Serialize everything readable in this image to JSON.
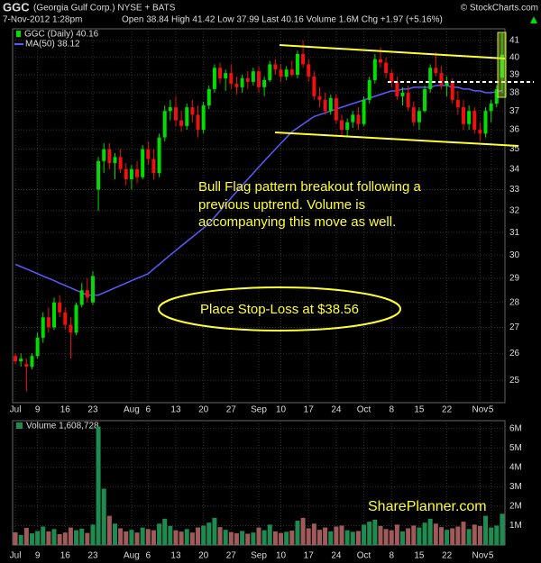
{
  "chart_data": {
    "type": "candlestick",
    "title": "GGC",
    "subtitle": "(Georgia Gulf Corp.) NYSE + BATS",
    "source": "© StockCharts.com",
    "date": "7-Nov-2012 1:28pm",
    "quote": "Open 38.84 High 41.42 Low 37.99 Last 40.16 Volume 1.6M Chg +1.97 (+5.16%)",
    "log_scale": true,
    "grid": true,
    "ylim": [
      24.2,
      41.7
    ],
    "yticks": [
      25,
      26,
      27,
      28,
      29,
      30,
      31,
      32,
      33,
      34,
      35,
      36,
      37,
      38,
      39,
      40,
      41
    ],
    "categories": [
      "Jul",
      null,
      null,
      null,
      "9",
      null,
      null,
      null,
      null,
      "16",
      null,
      null,
      null,
      null,
      "23",
      null,
      null,
      null,
      null,
      null,
      null,
      "Aug",
      null,
      null,
      "6",
      null,
      null,
      null,
      null,
      "13",
      null,
      null,
      null,
      null,
      "20",
      null,
      null,
      null,
      null,
      "27",
      null,
      null,
      null,
      null,
      "Sep",
      null,
      null,
      null,
      "10",
      null,
      null,
      null,
      null,
      "17",
      null,
      null,
      null,
      null,
      "24",
      null,
      null,
      null,
      null,
      "Oct",
      null,
      null,
      null,
      null,
      "8",
      null,
      null,
      null,
      null,
      "15",
      null,
      null,
      null,
      null,
      "22",
      null,
      null,
      null,
      null,
      null,
      "Nov",
      null,
      "5",
      null,
      null
    ],
    "price": {
      "name": "GGC (Daily) 40.16",
      "up_color": "#00dd00",
      "down_color": "#ee1111",
      "ohlc": [
        [
          25.9,
          26.0,
          25.6,
          25.7
        ],
        [
          25.7,
          26.0,
          25.5,
          25.8
        ],
        [
          25.6,
          25.8,
          24.6,
          25.5
        ],
        [
          25.5,
          26.0,
          25.4,
          25.9
        ],
        [
          25.9,
          26.8,
          25.8,
          26.6
        ],
        [
          26.6,
          27.6,
          26.4,
          27.4
        ],
        [
          27.4,
          27.8,
          26.8,
          27.0
        ],
        [
          27.0,
          28.2,
          26.9,
          28.0
        ],
        [
          28.0,
          28.3,
          27.4,
          27.6
        ],
        [
          27.6,
          27.8,
          26.9,
          27.1
        ],
        [
          27.1,
          27.4,
          25.8,
          26.8
        ],
        [
          26.8,
          28.0,
          26.7,
          27.9
        ],
        [
          27.9,
          28.8,
          27.8,
          28.5
        ],
        [
          28.5,
          29.0,
          28.0,
          28.2
        ],
        [
          28.0,
          29.3,
          27.9,
          29.1
        ],
        [
          33.0,
          34.6,
          32.0,
          34.4
        ],
        [
          34.4,
          35.3,
          33.8,
          35.0
        ],
        [
          35.0,
          35.3,
          34.0,
          34.3
        ],
        [
          34.3,
          34.8,
          33.5,
          34.6
        ],
        [
          34.6,
          35.0,
          33.8,
          34.0
        ],
        [
          34.0,
          34.3,
          33.2,
          33.5
        ],
        [
          33.5,
          34.2,
          33.0,
          34.0
        ],
        [
          34.0,
          34.4,
          33.3,
          33.6
        ],
        [
          33.6,
          35.2,
          33.5,
          35.0
        ],
        [
          35.0,
          35.4,
          34.2,
          34.5
        ],
        [
          34.5,
          35.0,
          33.5,
          33.8
        ],
        [
          33.8,
          35.8,
          33.6,
          35.6
        ],
        [
          35.6,
          37.3,
          35.4,
          37.0
        ],
        [
          37.0,
          37.6,
          36.5,
          37.2
        ],
        [
          37.2,
          37.8,
          36.2,
          36.5
        ],
        [
          36.5,
          37.0,
          35.9,
          36.2
        ],
        [
          36.2,
          37.4,
          36.0,
          37.2
        ],
        [
          37.2,
          37.6,
          36.4,
          36.8
        ],
        [
          36.8,
          37.3,
          35.6,
          36.0
        ],
        [
          36.0,
          37.5,
          35.8,
          37.3
        ],
        [
          37.3,
          38.4,
          37.1,
          38.2
        ],
        [
          38.2,
          39.6,
          38.0,
          39.4
        ],
        [
          39.4,
          39.7,
          38.5,
          38.8
        ],
        [
          38.8,
          39.3,
          38.1,
          39.1
        ],
        [
          39.1,
          39.6,
          38.2,
          38.5
        ],
        [
          38.5,
          38.9,
          37.9,
          38.3
        ],
        [
          38.3,
          39.0,
          38.0,
          38.8
        ],
        [
          38.8,
          39.2,
          38.2,
          38.6
        ],
        [
          38.6,
          39.4,
          38.4,
          39.2
        ],
        [
          39.2,
          39.5,
          38.0,
          38.3
        ],
        [
          38.3,
          38.9,
          37.8,
          38.7
        ],
        [
          38.7,
          39.8,
          38.6,
          39.6
        ],
        [
          39.6,
          39.9,
          39.0,
          39.3
        ],
        [
          39.3,
          39.6,
          38.6,
          38.9
        ],
        [
          38.9,
          39.5,
          38.7,
          39.3
        ],
        [
          39.3,
          39.8,
          38.9,
          39.0
        ],
        [
          39.0,
          40.4,
          38.8,
          40.2
        ],
        [
          40.2,
          41.0,
          39.4,
          39.6
        ],
        [
          39.6,
          39.9,
          38.6,
          38.9
        ],
        [
          38.9,
          39.2,
          37.6,
          37.8
        ],
        [
          37.8,
          38.3,
          37.2,
          37.6
        ],
        [
          37.6,
          38.0,
          36.8,
          37.0
        ],
        [
          37.0,
          37.9,
          36.8,
          37.7
        ],
        [
          37.7,
          37.9,
          36.3,
          36.5
        ],
        [
          36.5,
          36.8,
          35.7,
          36.0
        ],
        [
          36.0,
          36.6,
          35.6,
          36.4
        ],
        [
          36.4,
          37.0,
          36.1,
          36.8
        ],
        [
          36.8,
          37.2,
          36.0,
          36.3
        ],
        [
          36.3,
          37.8,
          36.2,
          37.6
        ],
        [
          37.6,
          38.9,
          37.4,
          38.7
        ],
        [
          38.7,
          40.2,
          38.5,
          39.9
        ],
        [
          39.9,
          40.6,
          39.4,
          39.7
        ],
        [
          39.7,
          40.0,
          38.8,
          39.1
        ],
        [
          39.1,
          39.3,
          38.3,
          38.6
        ],
        [
          38.6,
          38.9,
          37.6,
          37.8
        ],
        [
          37.8,
          38.3,
          37.3,
          38.0
        ],
        [
          38.0,
          38.4,
          37.0,
          37.2
        ],
        [
          37.2,
          37.5,
          36.2,
          36.4
        ],
        [
          36.4,
          37.2,
          36.0,
          37.0
        ],
        [
          37.0,
          38.4,
          36.9,
          38.2
        ],
        [
          38.2,
          39.6,
          38.0,
          39.4
        ],
        [
          39.4,
          40.3,
          38.9,
          39.1
        ],
        [
          39.1,
          39.5,
          38.2,
          38.4
        ],
        [
          38.4,
          38.9,
          37.8,
          38.6
        ],
        [
          38.6,
          38.8,
          37.4,
          37.6
        ],
        [
          37.6,
          38.1,
          36.8,
          37.2
        ],
        [
          37.2,
          37.6,
          36.0,
          36.3
        ],
        [
          36.3,
          37.3,
          36.0,
          37.0
        ],
        [
          37.0,
          37.2,
          35.8,
          36.0
        ],
        [
          36.0,
          36.4,
          35.4,
          35.8
        ],
        [
          35.8,
          37.2,
          35.6,
          37.0
        ],
        [
          37.0,
          37.6,
          36.4,
          37.4
        ],
        [
          37.4,
          38.4,
          37.2,
          38.19
        ],
        [
          38.84,
          41.42,
          37.99,
          40.16
        ]
      ]
    },
    "ma": {
      "name": "MA(50) 38.12",
      "color": "#5a5aff",
      "values": [
        29.6,
        29.5,
        29.4,
        29.3,
        29.2,
        29.1,
        29.0,
        28.9,
        28.8,
        28.7,
        28.6,
        28.5,
        28.4,
        28.3,
        28.3,
        28.3,
        28.4,
        28.5,
        28.6,
        28.7,
        28.8,
        28.9,
        29.0,
        29.1,
        29.2,
        29.4,
        29.6,
        29.8,
        30.0,
        30.2,
        30.4,
        30.6,
        30.8,
        31.0,
        31.2,
        31.4,
        31.7,
        32.0,
        32.3,
        32.6,
        32.9,
        33.2,
        33.5,
        33.8,
        34.1,
        34.4,
        34.7,
        35.0,
        35.3,
        35.6,
        35.9,
        36.1,
        36.3,
        36.5,
        36.7,
        36.8,
        36.9,
        37.0,
        37.1,
        37.2,
        37.3,
        37.4,
        37.5,
        37.6,
        37.7,
        37.8,
        37.9,
        38.0,
        38.1,
        38.1,
        38.2,
        38.2,
        38.3,
        38.3,
        38.3,
        38.3,
        38.4,
        38.4,
        38.4,
        38.3,
        38.3,
        38.2,
        38.2,
        38.1,
        38.1,
        38.0,
        38.0,
        38.05,
        38.12
      ]
    },
    "volume": {
      "name": "Volume 1,608,728",
      "up_color": "#1e8c50",
      "down_color": "#a05a5a",
      "ylim": [
        0,
        6400000
      ],
      "yticks": [
        {
          "value": 1000000,
          "label": "1M"
        },
        {
          "value": 2000000,
          "label": "2M"
        },
        {
          "value": 3000000,
          "label": "3M"
        },
        {
          "value": 4000000,
          "label": "4M"
        },
        {
          "value": 5000000,
          "label": "5M"
        },
        {
          "value": 6000000,
          "label": "6M"
        }
      ],
      "values": [
        650000,
        520000,
        880000,
        600000,
        720000,
        950000,
        700000,
        820000,
        560000,
        640000,
        900000,
        760000,
        840000,
        620000,
        1050000,
        6100000,
        2900000,
        1500000,
        1100000,
        860000,
        700000,
        780000,
        640000,
        900000,
        820000,
        760000,
        1100000,
        1350000,
        980000,
        760000,
        690000,
        820000,
        640000,
        900000,
        1000000,
        1150000,
        1400000,
        920000,
        780000,
        660000,
        600000,
        720000,
        580000,
        640000,
        900000,
        760000,
        1050000,
        700000,
        620000,
        680000,
        740000,
        1250000,
        1400000,
        860000,
        1100000,
        780000,
        900000,
        700000,
        950000,
        1000000,
        760000,
        680000,
        720000,
        1050000,
        1200000,
        1300000,
        980000,
        820000,
        760000,
        1050000,
        700000,
        860000,
        1000000,
        900000,
        1150000,
        1350000,
        1100000,
        920000,
        780000,
        860000,
        950000,
        1200000,
        820000,
        1050000,
        980000,
        1500000,
        900000,
        1000000,
        1608728
      ]
    },
    "annotations": {
      "note": [
        "Bull Flag pattern breakout following a",
        "previous uptrend. Volume is",
        "accompanying this move as well."
      ],
      "stop": "Place Stop-Loss at $38.56",
      "brand": "SharePlanner.com"
    }
  }
}
